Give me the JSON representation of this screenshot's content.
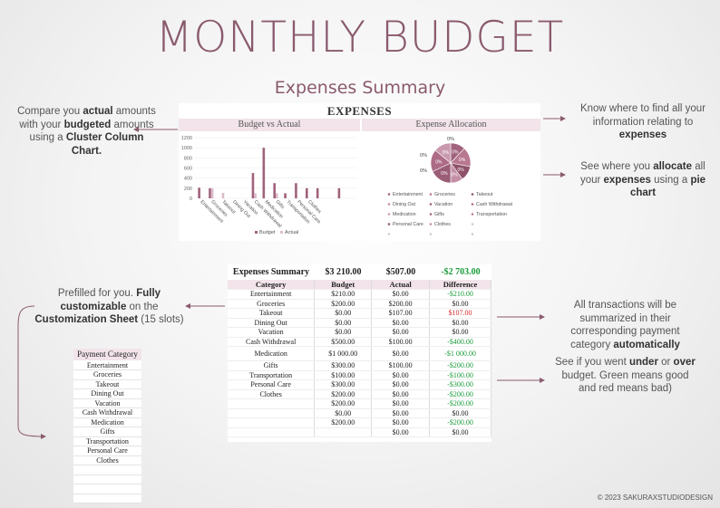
{
  "title": "MONTHLY BUDGET",
  "subtitle": "Expenses Summary",
  "expenses_heading": "EXPENSES",
  "bar_chart_title": "Budget vs Actual",
  "pie_chart_title": "Expense Allocation",
  "notes": {
    "left_top": {
      "a": "Compare you ",
      "b": "actual",
      "c": " amounts with your ",
      "d": "budgeted",
      "e": " amounts using a ",
      "f": "Cluster Column Chart."
    },
    "right_top": {
      "a": "Know where to find all your information relating to ",
      "b": "expenses"
    },
    "right_pie": {
      "a": "See where you ",
      "b": "allocate",
      "c": " all your ",
      "d": "expenses",
      "e": " using a ",
      "f": "pie chart"
    },
    "left_mid": {
      "a": "Prefilled for you. ",
      "b": "Fully customizable",
      "c": " on the ",
      "d": "Customization Sheet",
      "e": " (15 slots)"
    },
    "right_mid": {
      "a": "All transactions will be summarized in their corresponding payment category ",
      "b": "automatically"
    },
    "right_low": {
      "a": "See if you went ",
      "b": "under",
      "c": " or ",
      "d": "over",
      "e": " budget. Green means good and red means bad)"
    }
  },
  "chart_data": [
    {
      "type": "bar",
      "title": "Budget vs Actual",
      "categories": [
        "Entertainment",
        "Groceries",
        "Takeout",
        "Dining Out",
        "Vacation",
        "Cash Withdrawal",
        "Medication",
        "Gifts",
        "Transportation",
        "Personal Care",
        "Clothes",
        "",
        "",
        "",
        ""
      ],
      "series": [
        {
          "name": "Budget",
          "values": [
            210,
            200,
            0,
            0,
            0,
            500,
            1000,
            300,
            100,
            300,
            200,
            200,
            0,
            200,
            0
          ]
        },
        {
          "name": "Actual",
          "values": [
            0,
            200,
            107,
            0,
            0,
            100,
            0,
            100,
            0,
            0,
            0,
            0,
            0,
            0,
            0
          ]
        }
      ],
      "y_ticks": [
        "0",
        "200",
        "400",
        "600",
        "800",
        "1000",
        "1200"
      ],
      "ylim": [
        0,
        1200
      ],
      "legend": "bottom"
    },
    {
      "type": "pie",
      "title": "Expense Allocation",
      "slice_labels": [
        "0%",
        "0%",
        "0%",
        "0%",
        "0%",
        "0%",
        "0%"
      ],
      "legend": [
        "Entertainment",
        "Groceries",
        "Takeout",
        "Dining Out",
        "Vacation",
        "Cash Withdrawal",
        "Medication",
        "Gifts",
        "Transportation",
        "Personal Care",
        "Clothes",
        "",
        "",
        "",
        ""
      ]
    }
  ],
  "summary": {
    "label": "Expenses Summary",
    "budget_total": "$3 210.00",
    "actual_total": "$507.00",
    "difference_total": "-$2 703.00",
    "headers": [
      "Category",
      "Budget",
      "Actual",
      "Difference"
    ],
    "rows": [
      {
        "cat": "Entertainment",
        "budget": "$210.00",
        "actual": "$0.00",
        "diff": "-$210.00",
        "tone": "good"
      },
      {
        "cat": "Groceries",
        "budget": "$200.00",
        "actual": "$200.00",
        "diff": "$0.00",
        "tone": "neutral"
      },
      {
        "cat": "Takeout",
        "budget": "$0.00",
        "actual": "$107.00",
        "diff": "$107.00",
        "tone": "bad"
      },
      {
        "cat": "Dining Out",
        "budget": "$0.00",
        "actual": "$0.00",
        "diff": "$0.00",
        "tone": "neutral"
      },
      {
        "cat": "Vacation",
        "budget": "$0.00",
        "actual": "$0.00",
        "diff": "$0.00",
        "tone": "neutral"
      },
      {
        "cat": "Cash Withdrawal",
        "budget": "$500.00",
        "actual": "$100.00",
        "diff": "-$400.00",
        "tone": "good"
      },
      {
        "cat": "Medication",
        "budget": "$1 000.00",
        "actual": "$0.00",
        "diff": "-$1 000.00",
        "tone": "good"
      },
      {
        "cat": "Gifts",
        "budget": "$300.00",
        "actual": "$100.00",
        "diff": "-$200.00",
        "tone": "good"
      },
      {
        "cat": "Transportation",
        "budget": "$100.00",
        "actual": "$0.00",
        "diff": "-$100.00",
        "tone": "good"
      },
      {
        "cat": "Personal Care",
        "budget": "$300.00",
        "actual": "$0.00",
        "diff": "-$300.00",
        "tone": "good"
      },
      {
        "cat": "Clothes",
        "budget": "$200.00",
        "actual": "$0.00",
        "diff": "-$200.00",
        "tone": "good"
      },
      {
        "cat": "",
        "budget": "$200.00",
        "actual": "$0.00",
        "diff": "-$200.00",
        "tone": "good"
      },
      {
        "cat": "",
        "budget": "$0.00",
        "actual": "$0.00",
        "diff": "$0.00",
        "tone": "neutral"
      },
      {
        "cat": "",
        "budget": "$200.00",
        "actual": "$0.00",
        "diff": "-$200.00",
        "tone": "good"
      },
      {
        "cat": "",
        "budget": "",
        "actual": "$0.00",
        "diff": "$0.00",
        "tone": "neutral"
      }
    ]
  },
  "payment_category": {
    "header": "Payment Category",
    "items": [
      "Entertainment",
      "Groceries",
      "Takeout",
      "Dining Out",
      "Vacation",
      "Cash Withdrawal",
      "Medication",
      "Gifts",
      "Transportation",
      "Personal Care",
      "Clothes",
      "",
      "",
      "",
      ""
    ]
  },
  "colors": {
    "accent": "#8a5a6e",
    "bar_budget": "#a0627c",
    "bar_actual": "#dcbccb",
    "good": "#1a9b3a",
    "bad": "#d62828",
    "header_bg": "#f2e4ea"
  },
  "copyright": "© 2023 SAKURAXSTUDIODESIGN"
}
